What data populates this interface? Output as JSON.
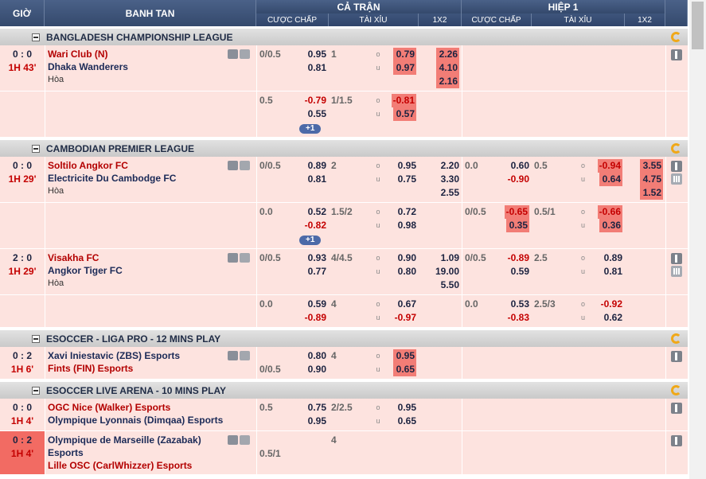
{
  "header": {
    "time": "GIỜ",
    "teams": "BANH TAN",
    "full_time": "CẢ TRẬN",
    "half_1": "HIỆP 1",
    "columns": [
      "CƯỢC CHẤP",
      "TÀI XỈU",
      "1X2"
    ]
  },
  "leagues": [
    {
      "name": "BANGLADESH CHAMPIONSHIP LEAGUE",
      "matches": [
        {
          "score": "0 : 0",
          "time": "1H 43'",
          "highlight": false,
          "icons": true,
          "stats": false,
          "teams": [
            {
              "name": "Wari Club (N)",
              "favorite": true
            },
            {
              "name": "Dhaka Wanderers",
              "favorite": false
            }
          ],
          "draw": "Hòa",
          "rows": [
            {
              "ft": {
                "hdp": [
                  "0/0.5"
                ],
                "hdp_odds": [
                  "0.95",
                  "0.81"
                ],
                "ou": [
                  "1"
                ],
                "ou_side": [
                  "o",
                  "u"
                ],
                "ou_odds": [
                  "0.79",
                  "0.97"
                ],
                "ou_odds_hl": [
                  true,
                  true
                ],
                "x12": [
                  "2.26",
                  "4.10",
                  "2.16"
                ],
                "x12_hl": [
                  true,
                  true,
                  true
                ]
              }
            },
            {
              "ft": {
                "hdp": [
                  "0.5"
                ],
                "hdp_odds": [
                  "-0.79",
                  "0.55"
                ],
                "ou": [
                  "1/1.5"
                ],
                "ou_side": [
                  "o",
                  "u"
                ],
                "ou_odds": [
                  "-0.81",
                  "0.57"
                ],
                "ou_odds_hl": [
                  true,
                  true
                ]
              },
              "badge": "+1"
            }
          ]
        }
      ]
    },
    {
      "name": "CAMBODIAN PREMIER LEAGUE",
      "matches": [
        {
          "score": "0 : 0",
          "time": "1H 29'",
          "highlight": false,
          "icons": true,
          "stats": true,
          "teams": [
            {
              "name": "Soltilo Angkor FC",
              "favorite": true
            },
            {
              "name": "Electricite Du Cambodge FC",
              "favorite": false
            }
          ],
          "draw": "Hòa",
          "rows": [
            {
              "ft": {
                "hdp": [
                  "0/0.5"
                ],
                "hdp_odds": [
                  "0.89",
                  "0.81"
                ],
                "ou": [
                  "2"
                ],
                "ou_side": [
                  "o",
                  "u"
                ],
                "ou_odds": [
                  "0.95",
                  "0.75"
                ],
                "x12": [
                  "2.20",
                  "3.30",
                  "2.55"
                ]
              },
              "h1": {
                "hdp": [
                  "0.0"
                ],
                "hdp_odds": [
                  "0.60",
                  "-0.90"
                ],
                "ou": [
                  "0.5"
                ],
                "ou_side": [
                  "o",
                  "u"
                ],
                "ou_odds": [
                  "-0.94",
                  "0.64"
                ],
                "ou_odds_hl": [
                  true,
                  true
                ],
                "x12": [
                  "3.55",
                  "4.75",
                  "1.52"
                ],
                "x12_hl": [
                  true,
                  true,
                  true
                ]
              }
            },
            {
              "ft": {
                "hdp": [
                  "0.0"
                ],
                "hdp_odds": [
                  "0.52",
                  "-0.82"
                ],
                "ou": [
                  "1.5/2"
                ],
                "ou_side": [
                  "o",
                  "u"
                ],
                "ou_odds": [
                  "0.72",
                  "0.98"
                ]
              },
              "h1": {
                "hdp": [
                  "0/0.5"
                ],
                "hdp_odds": [
                  "-0.65",
                  "0.35"
                ],
                "hdp_odds_hl": [
                  true,
                  true
                ],
                "ou": [
                  "0.5/1"
                ],
                "ou_side": [
                  "o",
                  "u"
                ],
                "ou_odds": [
                  "-0.66",
                  "0.36"
                ],
                "ou_odds_hl": [
                  true,
                  true
                ]
              },
              "badge": "+1"
            }
          ]
        },
        {
          "score": "2 : 0",
          "time": "1H 29'",
          "highlight": false,
          "icons": true,
          "stats": true,
          "teams": [
            {
              "name": "Visakha FC",
              "favorite": true
            },
            {
              "name": "Angkor Tiger FC",
              "favorite": false
            }
          ],
          "draw": "Hòa",
          "rows": [
            {
              "ft": {
                "hdp": [
                  "0/0.5"
                ],
                "hdp_odds": [
                  "0.93",
                  "0.77"
                ],
                "ou": [
                  "4/4.5"
                ],
                "ou_side": [
                  "o",
                  "u"
                ],
                "ou_odds": [
                  "0.90",
                  "0.80"
                ],
                "x12": [
                  "1.09",
                  "19.00",
                  "5.50"
                ]
              },
              "h1": {
                "hdp": [
                  "0/0.5"
                ],
                "hdp_odds": [
                  "-0.89",
                  "0.59"
                ],
                "ou": [
                  "2.5"
                ],
                "ou_side": [
                  "o",
                  "u"
                ],
                "ou_odds": [
                  "0.89",
                  "0.81"
                ]
              }
            },
            {
              "ft": {
                "hdp": [
                  "0.0"
                ],
                "hdp_odds": [
                  "0.59",
                  "-0.89"
                ],
                "ou": [
                  "4"
                ],
                "ou_side": [
                  "o",
                  "u"
                ],
                "ou_odds": [
                  "0.67",
                  "-0.97"
                ]
              },
              "h1": {
                "hdp": [
                  "0.0"
                ],
                "hdp_odds": [
                  "0.53",
                  "-0.83"
                ],
                "ou": [
                  "2.5/3"
                ],
                "ou_side": [
                  "o",
                  "u"
                ],
                "ou_odds": [
                  "-0.92",
                  "0.62"
                ]
              }
            }
          ]
        }
      ]
    },
    {
      "name": "ESOCCER - LIGA PRO - 12 MINS PLAY",
      "matches": [
        {
          "score": "0 : 2",
          "time": "1H 6'",
          "highlight": false,
          "icons": true,
          "stats": false,
          "teams": [
            {
              "name": "Xavi Iniestavic (ZBS) Esports",
              "favorite": false
            },
            {
              "name": "Fints (FIN) Esports",
              "favorite": true
            }
          ],
          "rows": [
            {
              "ft": {
                "hdp": [
                  null,
                  "0/0.5"
                ],
                "hdp_odds": [
                  "0.80",
                  "0.90"
                ],
                "ou": [
                  "4"
                ],
                "ou_side": [
                  "o",
                  "u"
                ],
                "ou_odds": [
                  "0.95",
                  "0.65"
                ],
                "ou_odds_hl": [
                  true,
                  true
                ]
              }
            }
          ]
        }
      ]
    },
    {
      "name": "ESOCCER LIVE ARENA - 10 MINS PLAY",
      "matches": [
        {
          "score": "0 : 0",
          "time": "1H 4'",
          "highlight": false,
          "icons": false,
          "stats": false,
          "teams": [
            {
              "name": "OGC Nice (Walker) Esports",
              "favorite": true
            },
            {
              "name": "Olympique Lyonnais (Dimqaa) Esports",
              "favorite": false
            }
          ],
          "rows": [
            {
              "ft": {
                "hdp": [
                  "0.5"
                ],
                "hdp_odds": [
                  "0.75",
                  "0.95"
                ],
                "ou": [
                  "2/2.5"
                ],
                "ou_side": [
                  "o",
                  "u"
                ],
                "ou_odds": [
                  "0.95",
                  "0.65"
                ]
              }
            }
          ]
        },
        {
          "score": "0 : 2",
          "time": "1H 4'",
          "highlight": true,
          "icons": true,
          "stats": false,
          "teams": [
            {
              "name": "Olympique de Marseille (Zazabak) Esports",
              "favorite": false
            },
            {
              "name": "Lille OSC (CarlWhizzer) Esports",
              "favorite": true
            }
          ],
          "rows": [
            {
              "ft": {
                "hdp": [
                  null,
                  "0.5/1"
                ],
                "ou": [
                  "4"
                ]
              }
            }
          ]
        }
      ]
    }
  ]
}
